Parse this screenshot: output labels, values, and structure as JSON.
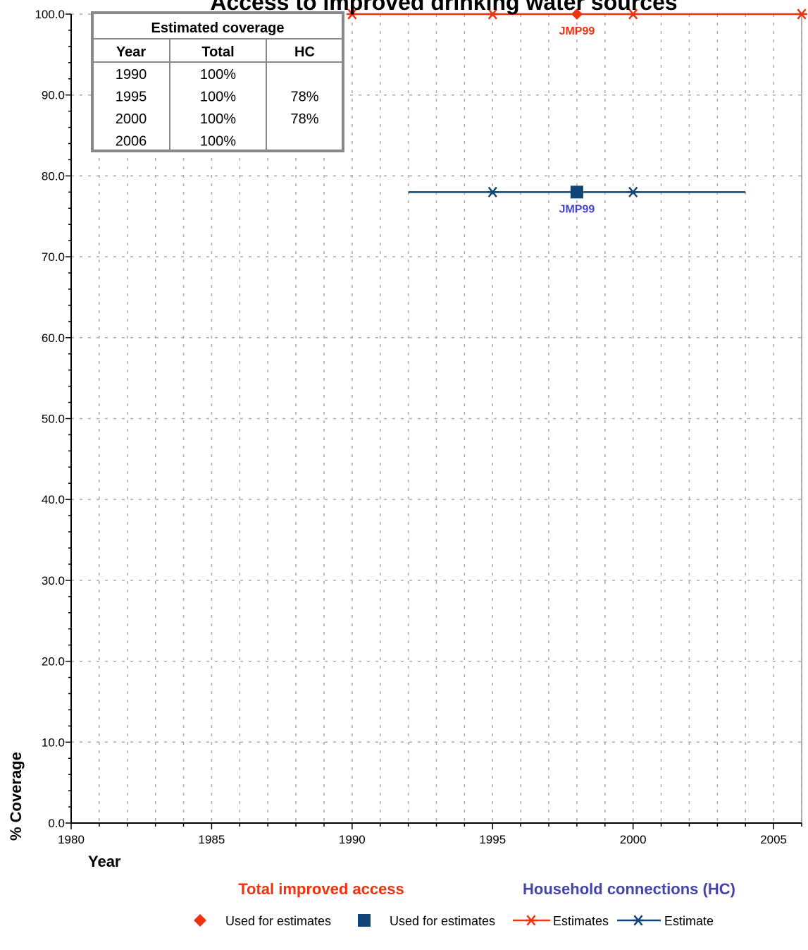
{
  "chart_data": {
    "type": "line",
    "title": "Access to improved drinking water sources",
    "xlabel": "Year",
    "ylabel": "% Coverage",
    "xlim": [
      1980,
      2006
    ],
    "ylim": [
      0,
      100
    ],
    "x_ticks": [
      1980,
      1985,
      1990,
      1995,
      2000,
      2005
    ],
    "y_ticks": [
      "0.0",
      "10.0",
      "20.0",
      "30.0",
      "40.0",
      "50.0",
      "60.0",
      "70.0",
      "80.0",
      "90.0",
      "100.0"
    ],
    "grid": true,
    "series": [
      {
        "name": "Estimates",
        "group": "Total improved access",
        "color": "#ee3311",
        "marker": "star",
        "x": [
          1990,
          1995,
          2000,
          2006
        ],
        "y": [
          100,
          100,
          100,
          100
        ]
      },
      {
        "name": "Estimate",
        "group": "Household connections (HC)",
        "color": "#114477",
        "marker": "star",
        "x": [
          1992,
          1995,
          2000,
          2004
        ],
        "y": [
          78,
          78,
          78,
          78
        ],
        "marker_x": [
          1995,
          2000
        ]
      }
    ],
    "survey_points": [
      {
        "group": "Total improved access",
        "x": 1998,
        "y": 100,
        "label": "JMP99",
        "marker": "diamond",
        "color": "#ee3311",
        "label_color": "#ee3311"
      },
      {
        "group": "Household connections (HC)",
        "x": 1998,
        "y": 78,
        "label": "JMP99",
        "marker": "square",
        "color": "#114477",
        "label_color": "#4444cc"
      }
    ],
    "group_titles": [
      {
        "text": "Total improved access",
        "color": "#ee3311"
      },
      {
        "text": "Household connections (HC)",
        "color": "#4444aa"
      }
    ],
    "legend": {
      "placement": "bottom",
      "items": [
        {
          "label": "Used for estimates",
          "marker": "diamond",
          "color": "#ee3311"
        },
        {
          "label": "Used for estimates",
          "marker": "square",
          "color": "#114477"
        },
        {
          "label": "Estimates",
          "marker": "star-line",
          "color": "#ee3311"
        },
        {
          "label": "Estimate",
          "marker": "star-line",
          "color": "#114477"
        }
      ]
    },
    "coverage_table": {
      "title": "Estimated coverage",
      "columns": [
        "Year",
        "Total",
        "HC"
      ],
      "rows": [
        [
          "1990",
          "100%",
          ""
        ],
        [
          "1995",
          "100%",
          "78%"
        ],
        [
          "2000",
          "100%",
          "78%"
        ],
        [
          "2006",
          "100%",
          ""
        ]
      ]
    }
  }
}
